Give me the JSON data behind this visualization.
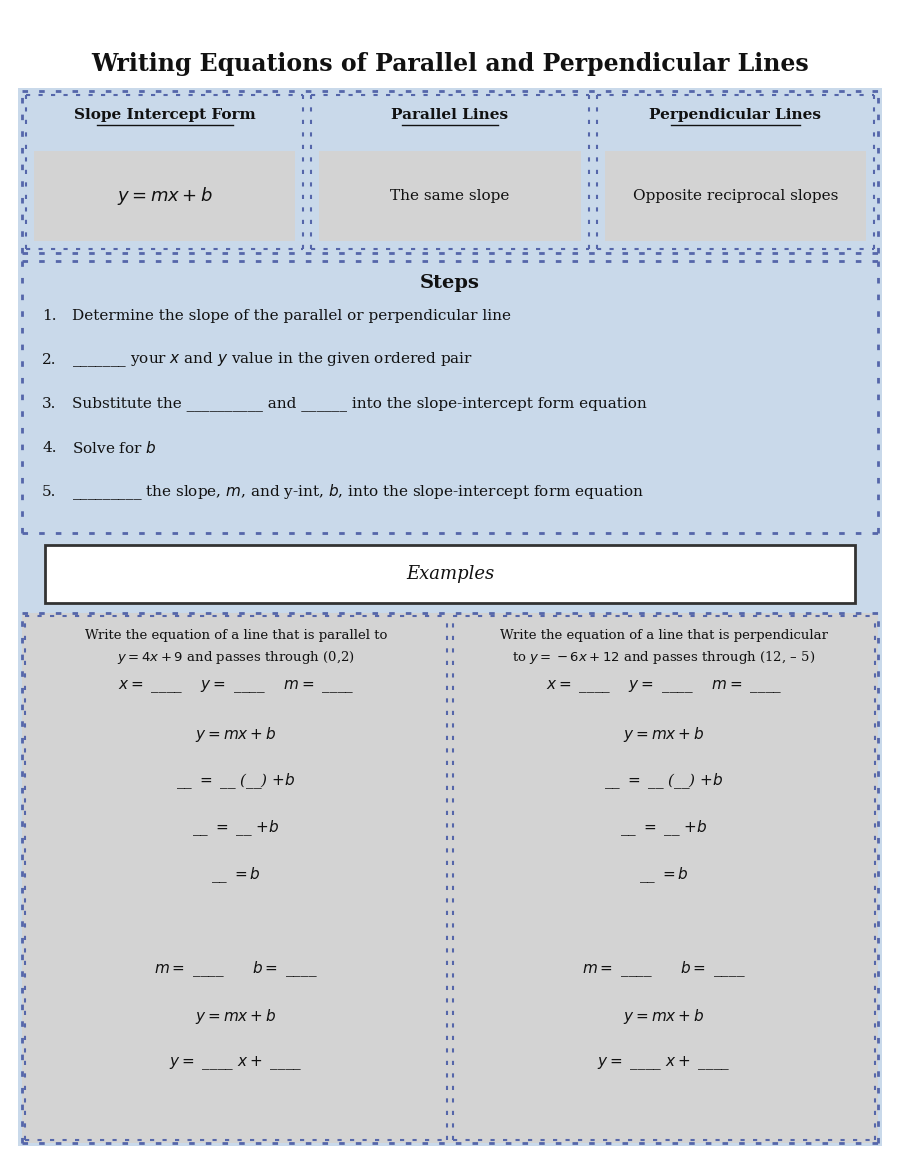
{
  "title": "Writing Equations of Parallel and Perpendicular Lines",
  "title_fontsize": 17,
  "col1_title": "Slope Intercept Form",
  "col2_title": "Parallel Lines",
  "col3_title": "Perpendicular Lines",
  "col1_content": "$y = mx + b$",
  "col2_content": "The same slope",
  "col3_content": "Opposite reciprocal slopes",
  "steps_title": "Steps",
  "steps": [
    [
      "1.",
      "Determine the slope of the parallel or perpendicular line"
    ],
    [
      "2.",
      "_______ your $x$ and $y$ value in the given ordered pair"
    ],
    [
      "3.",
      "Substitute the __________ and ______ into the slope-intercept form equation"
    ],
    [
      "4.",
      "Solve for $b$"
    ],
    [
      "5.",
      "_________ the slope, $m$, and y-int, $b$, into the slope-intercept form equation"
    ]
  ],
  "examples_title": "Examples",
  "ex1_line1": "Write the equation of a line that is parallel to",
  "ex1_line2": "$y = 4x + 9$ and passes through (0,2)",
  "ex2_line1": "Write the equation of a line that is perpendicular",
  "ex2_line2": "to $y = -6x + 12$ and passes through (12, – 5)",
  "work_lines_left": [
    "$x =$ ____    $y =$ ____    $m =$ ____",
    "$y = mx + b$",
    "__ $=$ __ (__) $+ b$",
    "__ $=$ __ $+ b$",
    "__ $= b$",
    "",
    "$m =$ ____      $b =$ ____",
    "$y = mx + b$",
    "$y =$ ____ $x +$ ____"
  ],
  "work_lines_right": [
    "$x =$ ____    $y =$ ____    $m =$ ____",
    "$y = mx + b$",
    "__ $=$ __ (__) $+ b$",
    "__ $=$ __ $+ b$",
    "__ $= b$",
    "",
    "$m =$ ____      $b =$ ____",
    "$y = mx + b$",
    "$y =$ ____ $x +$ ____"
  ],
  "color_blue_bg": "#c9d9ea",
  "color_gray_box": "#d3d3d3",
  "color_white": "#ffffff",
  "color_dot_border": "#5566aa",
  "color_text": "#111111"
}
